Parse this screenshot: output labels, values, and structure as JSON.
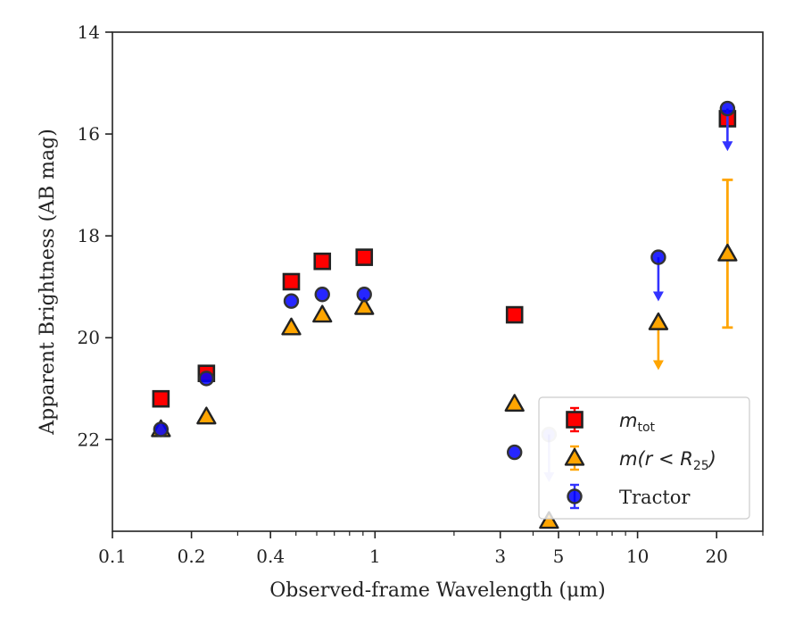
{
  "chart_data": {
    "type": "scatter",
    "xlabel": "Observed-frame Wavelength (μm)",
    "ylabel": "Apparent Brightness (AB mag)",
    "xscale": "log",
    "xlim": [
      0.1,
      30
    ],
    "ylim": [
      23.8,
      14
    ],
    "y_inverted": true,
    "x_ticks": [
      0.1,
      0.2,
      0.4,
      1,
      3,
      5,
      10,
      20
    ],
    "x_tick_labels": [
      "0.1",
      "0.2",
      "0.4",
      "1",
      "3",
      "5",
      "10",
      "20"
    ],
    "y_ticks": [
      14,
      16,
      18,
      20,
      22
    ],
    "y_tick_labels": [
      "14",
      "16",
      "18",
      "20",
      "22"
    ],
    "grid": false,
    "legend_position": "lower-right",
    "series": [
      {
        "name": "m_tot",
        "legend_main": "m",
        "legend_sub": "tot",
        "marker": "square",
        "color": "#ff0000",
        "edge_color": "#222222",
        "points": [
          {
            "x": 0.153,
            "y": 21.2
          },
          {
            "x": 0.228,
            "y": 20.7
          },
          {
            "x": 0.48,
            "y": 18.9
          },
          {
            "x": 0.63,
            "y": 18.5
          },
          {
            "x": 0.91,
            "y": 18.42
          },
          {
            "x": 3.4,
            "y": 19.55
          },
          {
            "x": 22,
            "y": 15.7
          }
        ]
      },
      {
        "name": "m(r<R25)",
        "legend_main": "m(r < R",
        "legend_sub": "25",
        "legend_end": ")",
        "marker": "triangle",
        "color": "#ffa500",
        "edge_color": "#222222",
        "points": [
          {
            "x": 0.153,
            "y": 21.8
          },
          {
            "x": 0.228,
            "y": 21.55
          },
          {
            "x": 0.48,
            "y": 19.8
          },
          {
            "x": 0.63,
            "y": 19.55
          },
          {
            "x": 0.91,
            "y": 19.4
          },
          {
            "x": 3.4,
            "y": 21.3
          },
          {
            "x": 4.6,
            "y": 23.6
          },
          {
            "x": 12,
            "y": 19.7,
            "upper_limit": true,
            "arrow_to": 20.6
          },
          {
            "x": 22,
            "y": 18.35,
            "err_lo": 16.9,
            "err_hi": 19.8
          }
        ]
      },
      {
        "name": "Tractor",
        "legend_main": "Tractor",
        "marker": "circle",
        "color": "#0000ff",
        "edge_color": "#333333",
        "points": [
          {
            "x": 0.153,
            "y": 21.8
          },
          {
            "x": 0.228,
            "y": 20.8
          },
          {
            "x": 0.48,
            "y": 19.28
          },
          {
            "x": 0.63,
            "y": 19.15
          },
          {
            "x": 0.91,
            "y": 19.15
          },
          {
            "x": 3.4,
            "y": 22.25
          },
          {
            "x": 4.6,
            "y": 21.9,
            "upper_limit": true,
            "arrow_to": 22.8,
            "faded": true
          },
          {
            "x": 12,
            "y": 18.42,
            "upper_limit": true,
            "arrow_to": 19.25
          },
          {
            "x": 22,
            "y": 15.5,
            "upper_limit": true,
            "arrow_to": 16.3
          }
        ]
      }
    ]
  }
}
